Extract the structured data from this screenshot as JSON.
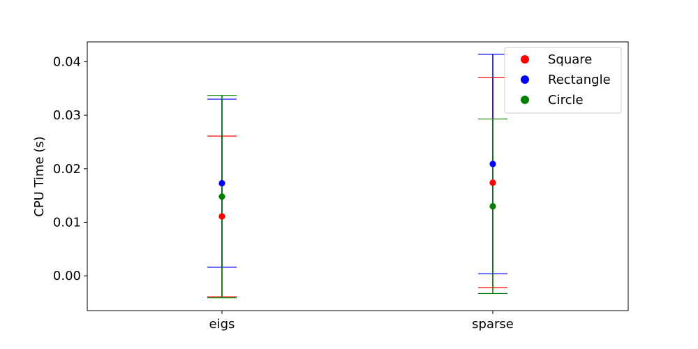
{
  "chart_data": {
    "type": "scatter",
    "chart_variant": "point with error bars",
    "categories": [
      "eigs",
      "sparse"
    ],
    "ylabel": "CPU Time (s)",
    "xlabel": "",
    "ylim": [
      -0.0065,
      0.0437
    ],
    "yticks": [
      0.0,
      0.01,
      0.02,
      0.03,
      0.04
    ],
    "ytick_labels": [
      "0.00",
      "0.01",
      "0.02",
      "0.03",
      "0.04"
    ],
    "grid": false,
    "legend_position": "top-right",
    "series": [
      {
        "name": "Square",
        "color": "#ff0000",
        "values": [
          0.0111,
          0.0174
        ],
        "errors": [
          0.015,
          0.0196
        ]
      },
      {
        "name": "Rectangle",
        "color": "#0000ff",
        "values": [
          0.0173,
          0.0209
        ],
        "errors": [
          0.0157,
          0.0205
        ]
      },
      {
        "name": "Circle",
        "color": "#008000",
        "values": [
          0.0148,
          0.013
        ],
        "errors": [
          0.0189,
          0.0163
        ]
      }
    ]
  }
}
